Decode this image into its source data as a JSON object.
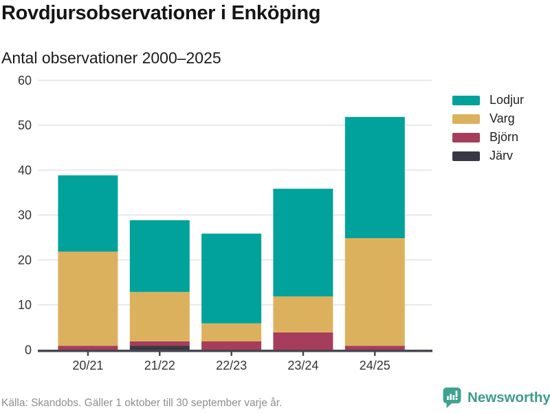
{
  "header": {
    "title": "Rovdjursobservationer i Enköping",
    "subtitle": "Antal observationer 2000–2025"
  },
  "chart_data": {
    "type": "bar",
    "stacked": true,
    "title": "Rovdjursobservationer i Enköping",
    "subtitle": "Antal observationer 2000–2025",
    "categories": [
      "20/21",
      "21/22",
      "22/23",
      "23/24",
      "24/25"
    ],
    "series": [
      {
        "name": "Lodjur",
        "color": "#00a29b",
        "values": [
          17,
          16,
          20,
          24,
          27
        ]
      },
      {
        "name": "Varg",
        "color": "#dcb15e",
        "values": [
          21,
          11,
          4,
          8,
          24
        ]
      },
      {
        "name": "Björn",
        "color": "#a63d5c",
        "values": [
          1,
          1,
          2,
          4,
          1
        ]
      },
      {
        "name": "Järv",
        "color": "#383844",
        "values": [
          0,
          1,
          0,
          0,
          0
        ]
      }
    ],
    "stack_order_bottom_to_top": [
      "Järv",
      "Björn",
      "Varg",
      "Lodjur"
    ],
    "totals": [
      39,
      29,
      26,
      36,
      52
    ],
    "xlabel": "",
    "ylabel": "",
    "ylim": [
      0,
      60
    ],
    "yticks": [
      0,
      10,
      20,
      30,
      40,
      50,
      60
    ],
    "grid": "horizontal",
    "legend_position": "right"
  },
  "legend": {
    "items": [
      {
        "label": "Lodjur",
        "color": "#00a29b"
      },
      {
        "label": "Varg",
        "color": "#dcb15e"
      },
      {
        "label": "Björn",
        "color": "#a63d5c"
      },
      {
        "label": "Järv",
        "color": "#383844"
      }
    ]
  },
  "footer": {
    "source": "Källa: Skandobs. Gäller 1 oktober till 30 september varje år.",
    "brand_name": "Newsworthy"
  },
  "theme": {
    "background": "#ffffff",
    "grid_color": "#e4e4e4",
    "axis_color": "#474750",
    "tick_label_color": "#333333",
    "title_color": "#151515",
    "muted_text_color": "#8e8e8e",
    "brand_color": "#3f9a8e"
  }
}
